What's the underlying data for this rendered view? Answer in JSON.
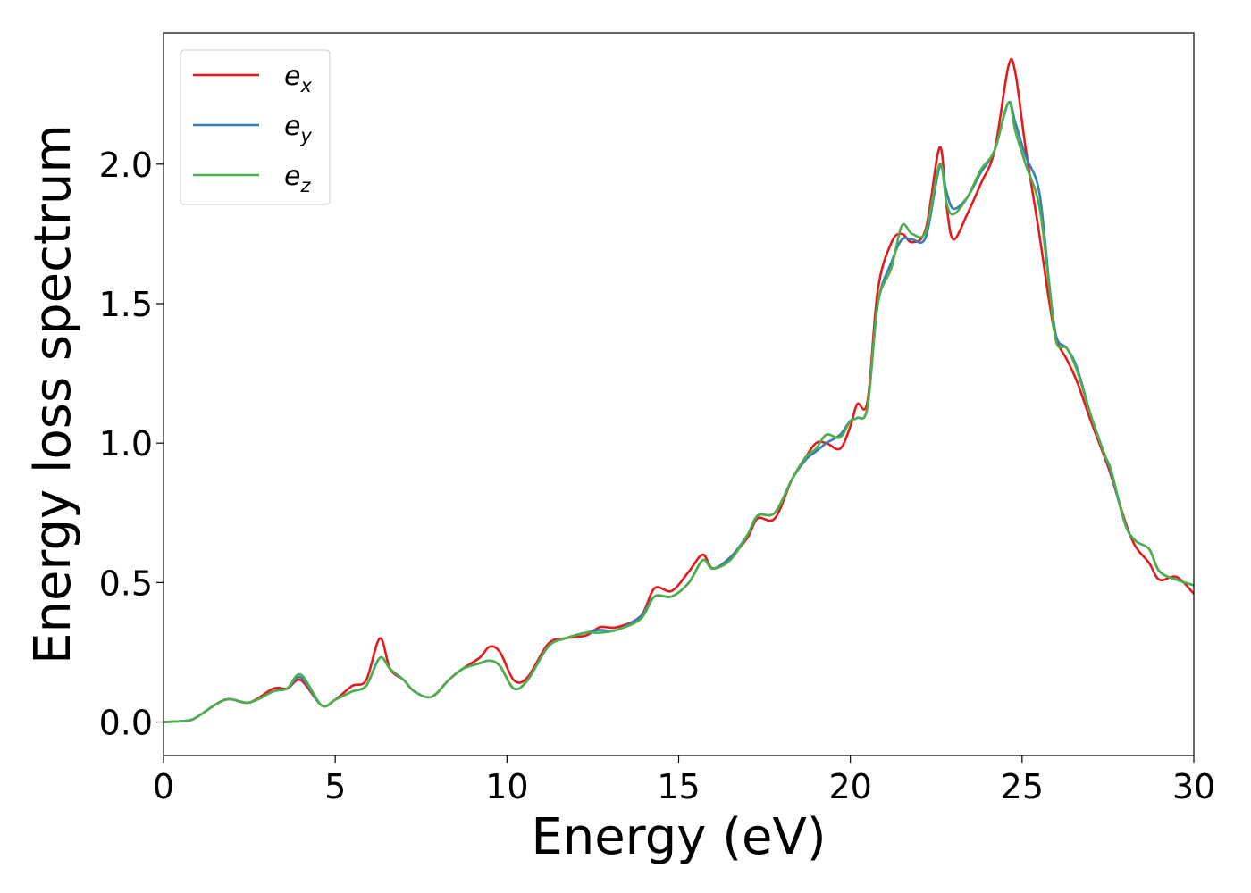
{
  "chart_data": {
    "type": "line",
    "title": "",
    "xlabel": "Energy (eV)",
    "ylabel": "Energy loss spectrum",
    "xlim": [
      0,
      30
    ],
    "ylim": [
      -0.12,
      2.47
    ],
    "xticks": [
      0,
      5,
      10,
      15,
      20,
      25,
      30
    ],
    "xtick_labels": [
      "0",
      "5",
      "10",
      "15",
      "20",
      "25",
      "30"
    ],
    "yticks": [
      0.0,
      0.5,
      1.0,
      1.5,
      2.0
    ],
    "ytick_labels": [
      "0.0",
      "0.5",
      "1.0",
      "1.5",
      "2.0"
    ],
    "grid": false,
    "legend_position": "top-left",
    "series": [
      {
        "name": "e_x",
        "legend_base": "e",
        "legend_sub": "x",
        "color": "#e41a1c",
        "points": [
          [
            0,
            0.0
          ],
          [
            0.7,
            0.005
          ],
          [
            1.0,
            0.02
          ],
          [
            1.8,
            0.08
          ],
          [
            2.5,
            0.07
          ],
          [
            3.2,
            0.12
          ],
          [
            3.6,
            0.12
          ],
          [
            4.0,
            0.15
          ],
          [
            4.6,
            0.06
          ],
          [
            5.0,
            0.08
          ],
          [
            5.5,
            0.13
          ],
          [
            5.9,
            0.15
          ],
          [
            6.3,
            0.3
          ],
          [
            6.6,
            0.19
          ],
          [
            7.0,
            0.15
          ],
          [
            7.3,
            0.11
          ],
          [
            7.8,
            0.09
          ],
          [
            8.3,
            0.15
          ],
          [
            8.7,
            0.19
          ],
          [
            9.2,
            0.23
          ],
          [
            9.5,
            0.27
          ],
          [
            9.8,
            0.25
          ],
          [
            10.2,
            0.15
          ],
          [
            10.6,
            0.16
          ],
          [
            11.2,
            0.28
          ],
          [
            11.7,
            0.3
          ],
          [
            12.3,
            0.31
          ],
          [
            12.7,
            0.34
          ],
          [
            13.2,
            0.34
          ],
          [
            13.9,
            0.38
          ],
          [
            14.3,
            0.48
          ],
          [
            14.8,
            0.47
          ],
          [
            15.3,
            0.54
          ],
          [
            15.7,
            0.6
          ],
          [
            16.0,
            0.55
          ],
          [
            16.5,
            0.59
          ],
          [
            17.0,
            0.66
          ],
          [
            17.3,
            0.73
          ],
          [
            17.8,
            0.73
          ],
          [
            18.3,
            0.87
          ],
          [
            18.7,
            0.95
          ],
          [
            19.0,
            1.0
          ],
          [
            19.3,
            1.0
          ],
          [
            19.7,
            0.98
          ],
          [
            20.0,
            1.06
          ],
          [
            20.2,
            1.14
          ],
          [
            20.5,
            1.15
          ],
          [
            20.8,
            1.55
          ],
          [
            21.2,
            1.72
          ],
          [
            21.5,
            1.75
          ],
          [
            21.8,
            1.72
          ],
          [
            22.2,
            1.77
          ],
          [
            22.6,
            2.06
          ],
          [
            22.8,
            1.85
          ],
          [
            23.0,
            1.73
          ],
          [
            23.4,
            1.82
          ],
          [
            23.8,
            1.93
          ],
          [
            24.2,
            2.05
          ],
          [
            24.6,
            2.35
          ],
          [
            24.8,
            2.33
          ],
          [
            25.1,
            2.06
          ],
          [
            25.5,
            1.75
          ],
          [
            25.8,
            1.5
          ],
          [
            26.0,
            1.37
          ],
          [
            26.3,
            1.3
          ],
          [
            26.6,
            1.22
          ],
          [
            27.0,
            1.08
          ],
          [
            27.4,
            0.95
          ],
          [
            27.6,
            0.88
          ],
          [
            28.0,
            0.72
          ],
          [
            28.3,
            0.63
          ],
          [
            28.7,
            0.57
          ],
          [
            29.0,
            0.51
          ],
          [
            29.5,
            0.52
          ],
          [
            30.0,
            0.46
          ]
        ]
      },
      {
        "name": "e_y",
        "legend_base": "e",
        "legend_sub": "y",
        "color": "#377eb8",
        "points": [
          [
            0,
            0.0
          ],
          [
            0.7,
            0.005
          ],
          [
            1.0,
            0.02
          ],
          [
            1.8,
            0.08
          ],
          [
            2.5,
            0.07
          ],
          [
            3.2,
            0.11
          ],
          [
            3.6,
            0.12
          ],
          [
            4.0,
            0.16
          ],
          [
            4.6,
            0.06
          ],
          [
            5.0,
            0.08
          ],
          [
            5.5,
            0.11
          ],
          [
            5.9,
            0.13
          ],
          [
            6.3,
            0.23
          ],
          [
            6.6,
            0.19
          ],
          [
            7.0,
            0.15
          ],
          [
            7.3,
            0.11
          ],
          [
            7.8,
            0.09
          ],
          [
            8.3,
            0.15
          ],
          [
            8.7,
            0.19
          ],
          [
            9.2,
            0.21
          ],
          [
            9.5,
            0.22
          ],
          [
            9.8,
            0.2
          ],
          [
            10.2,
            0.12
          ],
          [
            10.6,
            0.15
          ],
          [
            11.2,
            0.27
          ],
          [
            11.7,
            0.3
          ],
          [
            12.3,
            0.32
          ],
          [
            12.7,
            0.33
          ],
          [
            13.2,
            0.33
          ],
          [
            13.9,
            0.38
          ],
          [
            14.3,
            0.45
          ],
          [
            14.8,
            0.45
          ],
          [
            15.3,
            0.5
          ],
          [
            15.7,
            0.58
          ],
          [
            16.0,
            0.55
          ],
          [
            16.5,
            0.59
          ],
          [
            17.0,
            0.67
          ],
          [
            17.3,
            0.74
          ],
          [
            17.8,
            0.75
          ],
          [
            18.3,
            0.87
          ],
          [
            18.7,
            0.94
          ],
          [
            19.0,
            0.97
          ],
          [
            19.3,
            1.0
          ],
          [
            19.7,
            1.03
          ],
          [
            20.0,
            1.08
          ],
          [
            20.2,
            1.09
          ],
          [
            20.5,
            1.13
          ],
          [
            20.8,
            1.5
          ],
          [
            21.2,
            1.65
          ],
          [
            21.5,
            1.73
          ],
          [
            21.8,
            1.73
          ],
          [
            22.2,
            1.74
          ],
          [
            22.6,
            1.99
          ],
          [
            22.8,
            1.9
          ],
          [
            23.0,
            1.84
          ],
          [
            23.4,
            1.88
          ],
          [
            23.8,
            1.97
          ],
          [
            24.2,
            2.05
          ],
          [
            24.6,
            2.22
          ],
          [
            24.8,
            2.15
          ],
          [
            25.1,
            2.03
          ],
          [
            25.5,
            1.9
          ],
          [
            25.8,
            1.56
          ],
          [
            26.0,
            1.38
          ],
          [
            26.3,
            1.34
          ],
          [
            26.6,
            1.27
          ],
          [
            27.0,
            1.1
          ],
          [
            27.4,
            0.96
          ],
          [
            27.6,
            0.89
          ],
          [
            28.0,
            0.71
          ],
          [
            28.3,
            0.65
          ],
          [
            28.7,
            0.62
          ],
          [
            29.0,
            0.54
          ],
          [
            29.5,
            0.51
          ],
          [
            30.0,
            0.49
          ]
        ]
      },
      {
        "name": "e_z",
        "legend_base": "e",
        "legend_sub": "z",
        "color": "#4daf4a",
        "points": [
          [
            0,
            0.0
          ],
          [
            0.7,
            0.005
          ],
          [
            1.0,
            0.02
          ],
          [
            1.8,
            0.08
          ],
          [
            2.5,
            0.07
          ],
          [
            3.2,
            0.11
          ],
          [
            3.6,
            0.12
          ],
          [
            4.0,
            0.17
          ],
          [
            4.6,
            0.06
          ],
          [
            5.0,
            0.08
          ],
          [
            5.5,
            0.11
          ],
          [
            5.9,
            0.13
          ],
          [
            6.3,
            0.23
          ],
          [
            6.6,
            0.19
          ],
          [
            7.0,
            0.15
          ],
          [
            7.3,
            0.11
          ],
          [
            7.8,
            0.09
          ],
          [
            8.3,
            0.15
          ],
          [
            8.7,
            0.19
          ],
          [
            9.2,
            0.21
          ],
          [
            9.5,
            0.22
          ],
          [
            9.8,
            0.2
          ],
          [
            10.2,
            0.12
          ],
          [
            10.6,
            0.15
          ],
          [
            11.2,
            0.27
          ],
          [
            11.7,
            0.3
          ],
          [
            12.3,
            0.32
          ],
          [
            12.7,
            0.32
          ],
          [
            13.2,
            0.33
          ],
          [
            13.9,
            0.37
          ],
          [
            14.3,
            0.45
          ],
          [
            14.8,
            0.45
          ],
          [
            15.3,
            0.5
          ],
          [
            15.7,
            0.58
          ],
          [
            16.0,
            0.55
          ],
          [
            16.5,
            0.58
          ],
          [
            17.0,
            0.67
          ],
          [
            17.3,
            0.74
          ],
          [
            17.8,
            0.75
          ],
          [
            18.3,
            0.87
          ],
          [
            18.7,
            0.95
          ],
          [
            19.0,
            0.98
          ],
          [
            19.3,
            1.03
          ],
          [
            19.7,
            1.02
          ],
          [
            20.0,
            1.08
          ],
          [
            20.2,
            1.09
          ],
          [
            20.5,
            1.13
          ],
          [
            20.8,
            1.5
          ],
          [
            21.2,
            1.63
          ],
          [
            21.5,
            1.78
          ],
          [
            21.8,
            1.75
          ],
          [
            22.2,
            1.76
          ],
          [
            22.6,
            2.0
          ],
          [
            22.8,
            1.86
          ],
          [
            23.0,
            1.82
          ],
          [
            23.4,
            1.88
          ],
          [
            23.8,
            1.98
          ],
          [
            24.2,
            2.05
          ],
          [
            24.6,
            2.22
          ],
          [
            24.8,
            2.12
          ],
          [
            25.1,
            2.0
          ],
          [
            25.5,
            1.85
          ],
          [
            25.8,
            1.55
          ],
          [
            26.0,
            1.36
          ],
          [
            26.3,
            1.34
          ],
          [
            26.6,
            1.26
          ],
          [
            27.0,
            1.1
          ],
          [
            27.4,
            0.96
          ],
          [
            27.6,
            0.9
          ],
          [
            28.0,
            0.71
          ],
          [
            28.3,
            0.65
          ],
          [
            28.7,
            0.62
          ],
          [
            29.0,
            0.54
          ],
          [
            29.5,
            0.51
          ],
          [
            30.0,
            0.49
          ]
        ]
      }
    ]
  }
}
